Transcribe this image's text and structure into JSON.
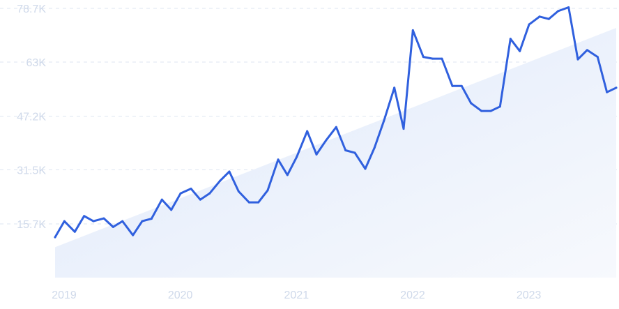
{
  "chart_data": {
    "type": "line",
    "title": "",
    "xlabel": "",
    "ylabel": "",
    "ylim": [
      0,
      78700
    ],
    "y_ticks": [
      "15.7K",
      "31.5K",
      "47.2K",
      "63K",
      "78.7K"
    ],
    "y_tick_values": [
      15700,
      31500,
      47200,
      63000,
      78700
    ],
    "x_tick_labels": [
      "2019",
      "2020",
      "2021",
      "2022",
      "2023"
    ],
    "x_tick_values": [
      2019.0,
      2020.0,
      2021.0,
      2022.0,
      2023.0
    ],
    "xlim": [
      2019.0,
      2023.83
    ],
    "grid": "horizontal dashed",
    "line_color": "#3060de",
    "trend_fill_color": "#e3edfb",
    "series": [
      {
        "x": [
          2019.0,
          2019.08,
          2019.17,
          2019.25,
          2019.33,
          2019.42,
          2019.5,
          2019.58,
          2019.67,
          2019.75,
          2019.83,
          2019.92,
          2020.0,
          2020.08,
          2020.17,
          2020.25,
          2020.33,
          2020.42,
          2020.5,
          2020.58,
          2020.67,
          2020.75,
          2020.83,
          2020.92,
          2021.0,
          2021.08,
          2021.17,
          2021.25,
          2021.33,
          2021.42,
          2021.5,
          2021.58,
          2021.67,
          2021.75,
          2021.83,
          2021.92,
          2022.0,
          2022.08,
          2022.17,
          2022.25,
          2022.33,
          2022.42,
          2022.5,
          2022.58,
          2022.67,
          2022.75,
          2022.83,
          2022.92,
          2023.0,
          2023.08,
          2023.17,
          2023.25,
          2023.33,
          2023.42,
          2023.5,
          2023.58,
          2023.67,
          2023.75,
          2023.83
        ],
        "values": [
          11800,
          16500,
          13400,
          18000,
          16500,
          17300,
          14800,
          16500,
          12400,
          16500,
          17200,
          22800,
          19800,
          24600,
          26000,
          22800,
          24600,
          28300,
          31000,
          25200,
          22000,
          22000,
          25500,
          34500,
          30000,
          35300,
          42800,
          36000,
          40000,
          44000,
          37200,
          36500,
          31800,
          38000,
          45800,
          55500,
          43500,
          72300,
          64500,
          64000,
          64000,
          56000,
          56000,
          51000,
          48700,
          48700,
          50000,
          69800,
          66200,
          74000,
          76300,
          75600,
          77900,
          79000,
          63800,
          66500,
          64500,
          54200,
          55500
        ]
      }
    ],
    "trend_band": {
      "x": [
        2019.0,
        2023.83
      ],
      "values": [
        8900,
        73000
      ]
    }
  }
}
